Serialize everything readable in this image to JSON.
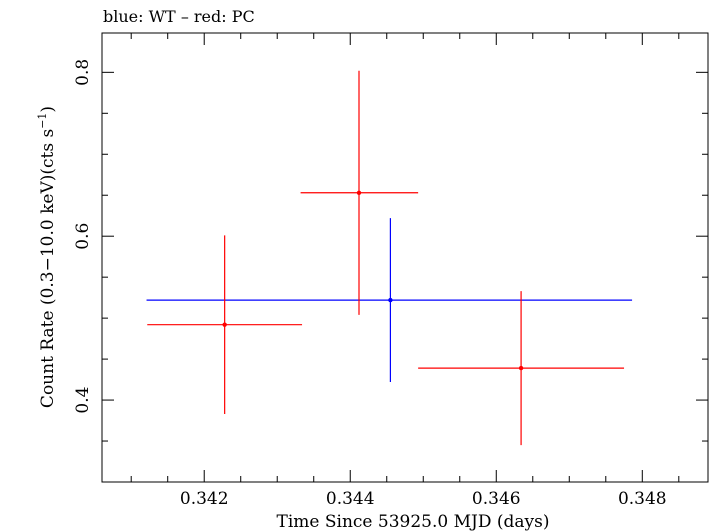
{
  "chart_data": {
    "type": "scatter",
    "title": "blue: WT – red: PC",
    "xlabel": "Time Since 53925.0 MJD (days)",
    "ylabel_main": "Count Rate (0.3−10.0 keV)(cts s",
    "ylabel_sup": "−1",
    "ylabel_close": ")",
    "xlim": [
      0.3406,
      0.3489
    ],
    "ylim": [
      0.3,
      0.848
    ],
    "x_ticks": [
      {
        "value": 0.342,
        "label": "0.342"
      },
      {
        "value": 0.344,
        "label": "0.344"
      },
      {
        "value": 0.346,
        "label": "0.346"
      },
      {
        "value": 0.348,
        "label": "0.348"
      }
    ],
    "y_ticks": [
      {
        "value": 0.4,
        "label": "0.4"
      },
      {
        "value": 0.6,
        "label": "0.6"
      },
      {
        "value": 0.8,
        "label": "0.8"
      }
    ],
    "grid": false,
    "series": [
      {
        "name": "WT",
        "color": "#0000ff",
        "points": [
          {
            "x": 0.34455,
            "y": 0.522,
            "xerr_low": 0.00334,
            "xerr_high": 0.00331,
            "yerr_low": 0.1,
            "yerr_high": 0.1
          }
        ]
      },
      {
        "name": "PC",
        "color": "#ff0000",
        "points": [
          {
            "x": 0.34228,
            "y": 0.492,
            "xerr_low": 0.00106,
            "xerr_high": 0.00106,
            "yerr_low": 0.109,
            "yerr_high": 0.109
          },
          {
            "x": 0.34412,
            "y": 0.653,
            "xerr_low": 0.0008,
            "xerr_high": 0.00081,
            "yerr_low": 0.149,
            "yerr_high": 0.149
          },
          {
            "x": 0.34634,
            "y": 0.439,
            "xerr_low": 0.00141,
            "xerr_high": 0.00141,
            "yerr_low": 0.094,
            "yerr_high": 0.094
          }
        ]
      }
    ]
  }
}
